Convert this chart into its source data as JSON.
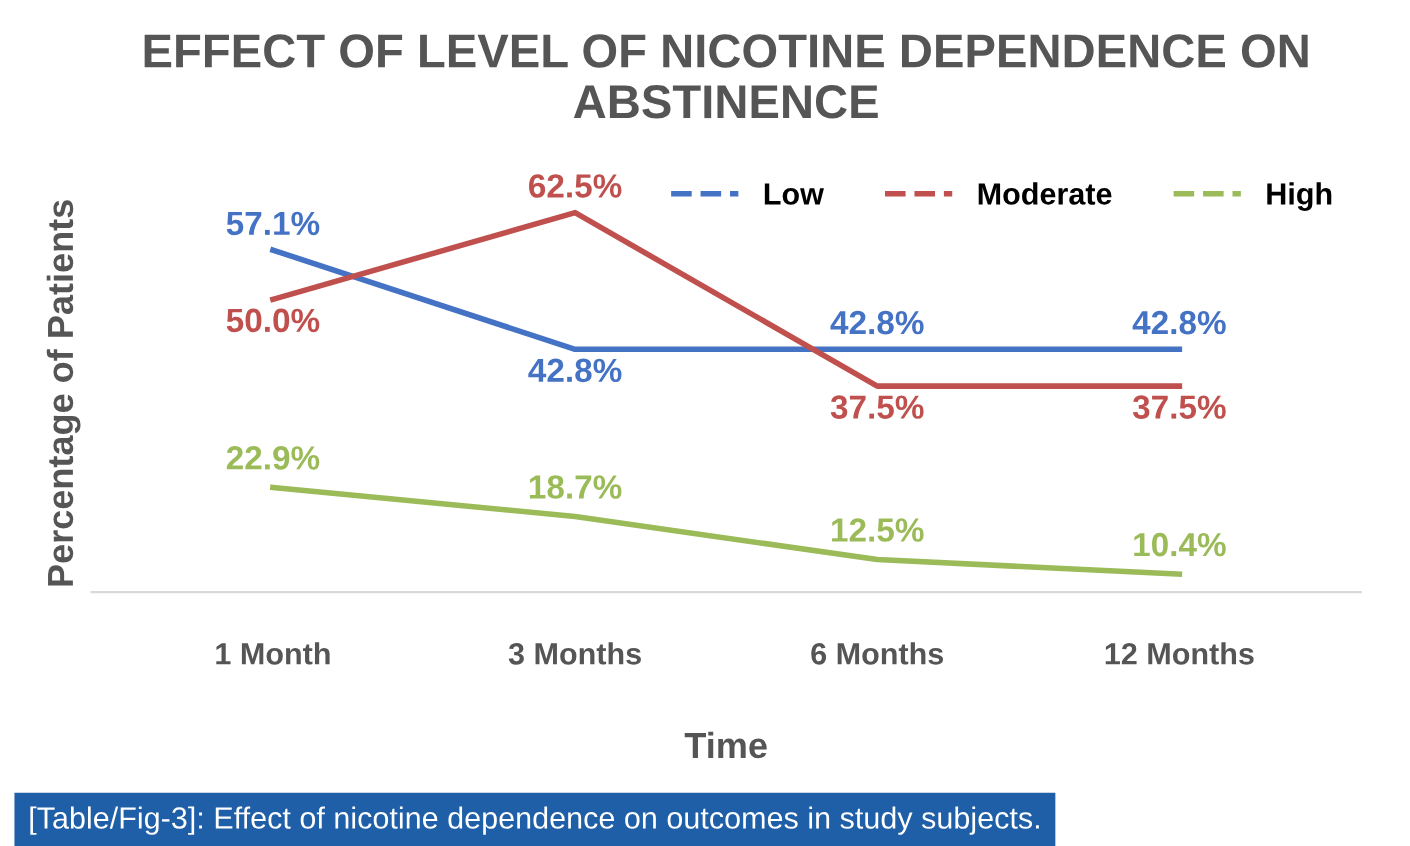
{
  "chart_data": {
    "type": "line",
    "title": "EFFECT OF LEVEL OF NICOTINE DEPENDENCE ON ABSTINENCE",
    "xlabel": "Time",
    "ylabel": "Percentage of Patients",
    "categories": [
      "1 Month",
      "3 Months",
      "6 Months",
      "12 Months"
    ],
    "series": [
      {
        "name": "Low",
        "color": "#4472c4",
        "values": [
          57.1,
          42.8,
          42.8,
          42.8
        ],
        "value_labels": [
          "57.1%",
          "42.8%",
          "42.8%",
          "42.8%"
        ]
      },
      {
        "name": "Moderate",
        "color": "#c0504d",
        "values": [
          50.0,
          62.5,
          37.5,
          37.5
        ],
        "value_labels": [
          "50.0%",
          "62.5%",
          "37.5%",
          "37.5%"
        ]
      },
      {
        "name": "High",
        "color": "#9bbb59",
        "values": [
          22.9,
          18.7,
          12.5,
          10.4
        ],
        "value_labels": [
          "22.9%",
          "18.7%",
          "12.5%",
          "10.4%"
        ]
      }
    ],
    "tick_labels": "x",
    "grid": false,
    "legend": "top right",
    "marker": "none",
    "annotations": [
      "[Table/Fig-3]: Effect of nicotine dependence on outcomes in study subjects."
    ]
  }
}
